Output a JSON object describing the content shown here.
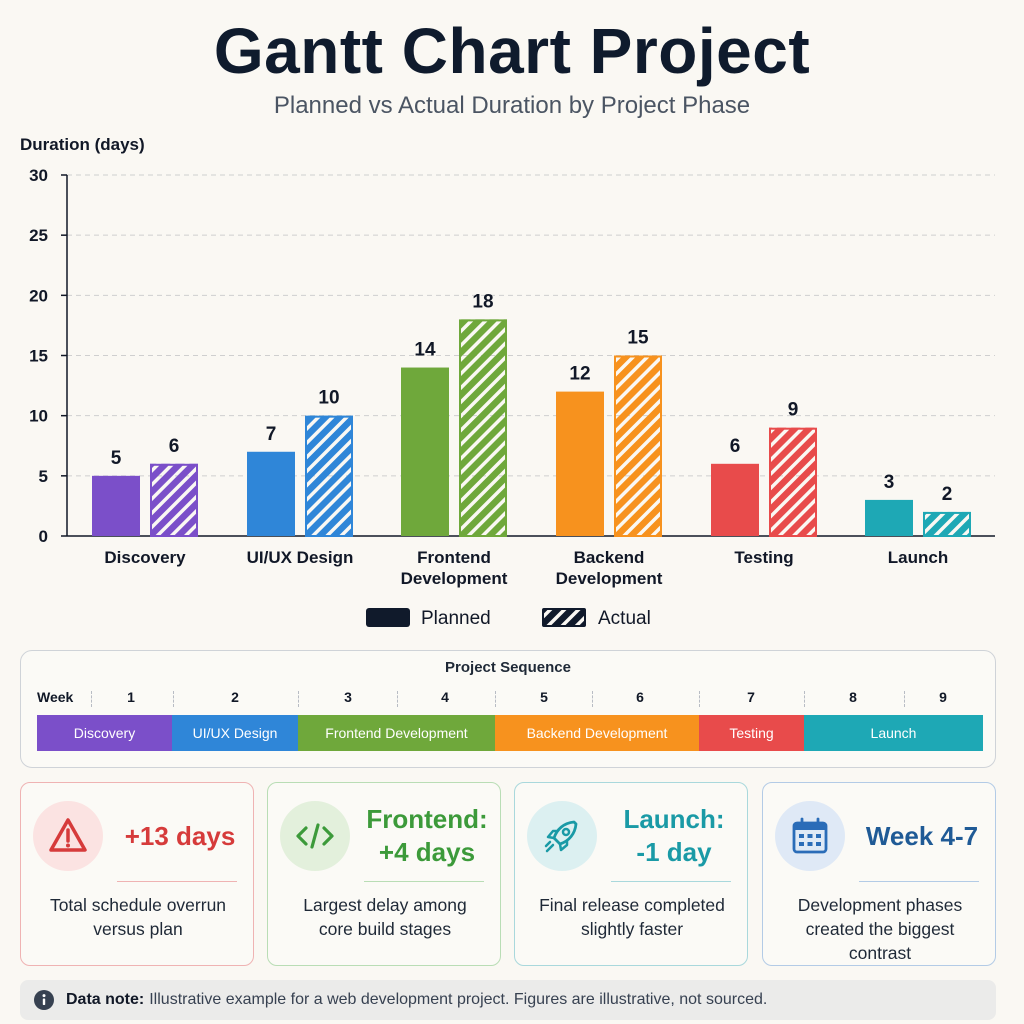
{
  "title": "Gantt Chart Project",
  "subtitle": "Planned vs Actual Duration by Project Phase",
  "chart_data": {
    "type": "bar",
    "ylabel": "Duration (days)",
    "ylim": [
      0,
      30
    ],
    "yticks": [
      0,
      5,
      10,
      15,
      20,
      25,
      30
    ],
    "grid": true,
    "legend_position": "bottom-center",
    "categories": [
      "Discovery",
      "UI/UX Design",
      "Frontend Development",
      "Backend Development",
      "Testing",
      "Launch"
    ],
    "category_label_lines": [
      [
        "Discovery"
      ],
      [
        "UI/UX Design"
      ],
      [
        "Frontend",
        "Development"
      ],
      [
        "Backend",
        "Development"
      ],
      [
        "Testing"
      ],
      [
        "Launch"
      ]
    ],
    "category_colors": [
      "#7b4fc9",
      "#2f86d8",
      "#6fa83b",
      "#f7921e",
      "#e84b4b",
      "#1ea8b5"
    ],
    "series": [
      {
        "name": "Planned",
        "style": "solid",
        "values": [
          5,
          7,
          14,
          12,
          6,
          3
        ]
      },
      {
        "name": "Actual",
        "style": "hatched",
        "values": [
          6,
          10,
          18,
          15,
          9,
          2
        ]
      }
    ]
  },
  "sequence": {
    "title": "Project Sequence",
    "week_label": "Week",
    "weeks": [
      "1",
      "2",
      "3",
      "4",
      "5",
      "6",
      "7",
      "8",
      "9"
    ],
    "phases": [
      {
        "label": "Discovery",
        "color": "#7b4fc9"
      },
      {
        "label": "UI/UX Design",
        "color": "#2f86d8"
      },
      {
        "label": "Frontend Development",
        "color": "#6fa83b"
      },
      {
        "label": "Backend Development",
        "color": "#f7921e"
      },
      {
        "label": "Testing",
        "color": "#e84b4b"
      },
      {
        "label": "Launch",
        "color": "#1ea8b5"
      }
    ]
  },
  "cards": [
    {
      "icon": "warning-icon",
      "head_line1": "+13 days",
      "head_line2": "",
      "text_line1": "Total schedule overrun",
      "text_line2": "versus plan",
      "text_line3": "",
      "accent": "#d63b3b"
    },
    {
      "icon": "code-icon",
      "head_line1": "Frontend:",
      "head_line2": "+4 days",
      "text_line1": "Largest delay among",
      "text_line2": "core build stages",
      "text_line3": "",
      "accent": "#3c9a3a"
    },
    {
      "icon": "rocket-icon",
      "head_line1": "Launch:",
      "head_line2": "-1 day",
      "text_line1": "Final release completed",
      "text_line2": "slightly faster",
      "text_line3": "",
      "accent": "#1a9aa6"
    },
    {
      "icon": "calendar-icon",
      "head_line1": "Week 4-7",
      "head_line2": "",
      "text_line1": "Development phases",
      "text_line2": "created the biggest",
      "text_line3": "contrast",
      "accent": "#1f5a96"
    }
  ],
  "note": {
    "icon": "info-icon",
    "label": "Data note:",
    "text": "Illustrative example for a web development project. Figures are illustrative, not sourced."
  }
}
